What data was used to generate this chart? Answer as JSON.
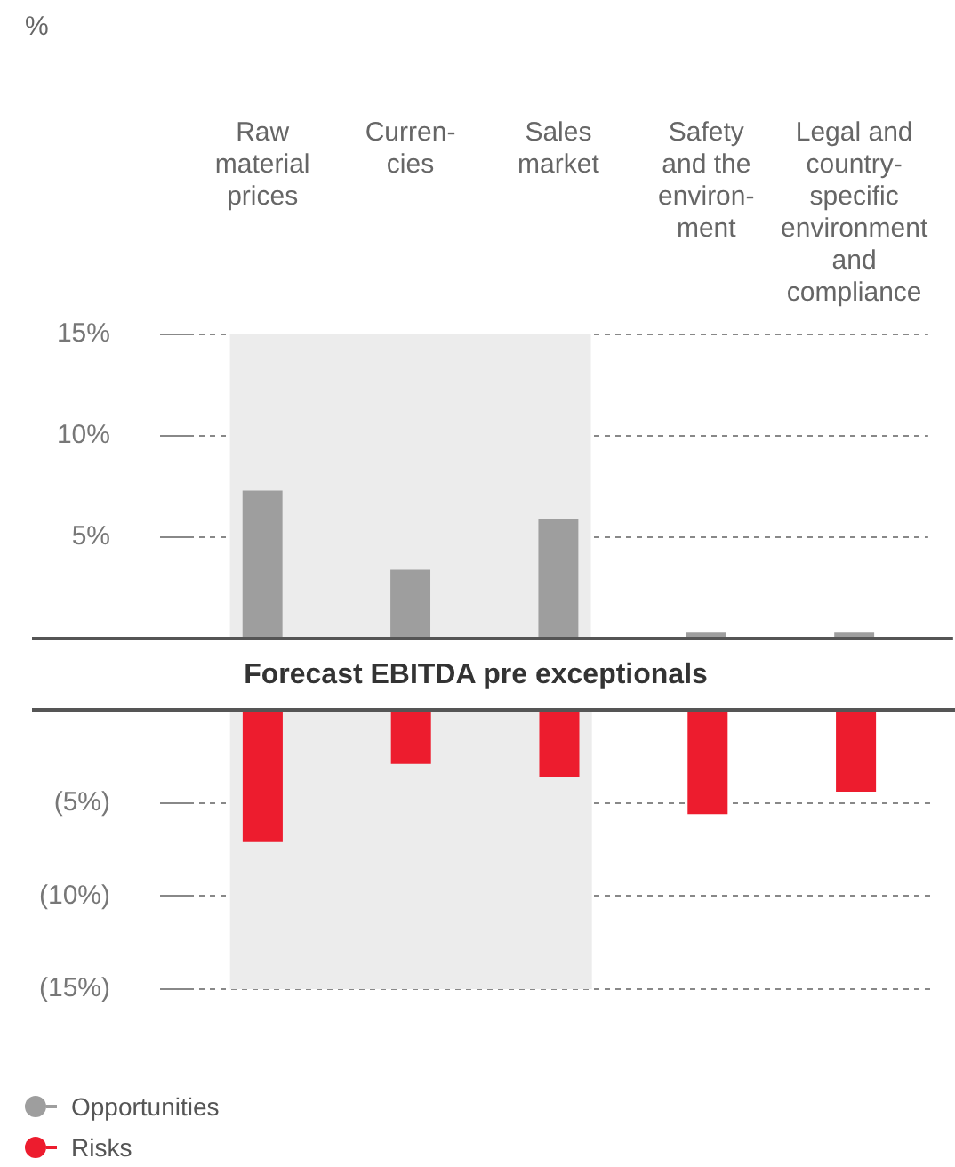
{
  "chart_data": [
    {
      "type": "bar",
      "annotations": [
        "%"
      ],
      "categories": [
        "Raw material prices",
        "Curren- cies",
        "Sales market",
        "Safety and the environ- ment",
        "Legal and country- specific environment and compliance"
      ],
      "series": [
        {
          "name": "Opportunities",
          "color": "#9e9e9e",
          "values": [
            7.3,
            3.4,
            5.9,
            0.3,
            0.3
          ]
        }
      ],
      "ylim": [
        0,
        15
      ],
      "yticks": [
        {
          "value": 5,
          "label": "5%"
        },
        {
          "value": 10,
          "label": "10%"
        },
        {
          "value": 15,
          "label": "15%"
        }
      ],
      "bands": [
        {
          "axis": "x",
          "from": "Raw material prices",
          "to": "Sales market",
          "color": "#ececec"
        }
      ],
      "grid": "y",
      "legend": "bottom left"
    },
    {
      "type": "bar",
      "title": "Forecast EBITDA pre exceptionals",
      "tick_labels": "y",
      "categories": [
        "Raw material prices",
        "Curren- cies",
        "Sales market",
        "Safety and the environ- ment",
        "Legal and country- specific environment and compliance"
      ],
      "series": [
        {
          "name": "Risks",
          "color": "#ed1c2e",
          "values": [
            -7.1,
            -2.9,
            -3.6,
            -5.6,
            -4.4
          ]
        }
      ],
      "ylim": [
        -15,
        0
      ],
      "yticks": [
        {
          "value": -15,
          "label": "(15%)"
        },
        {
          "value": -10,
          "label": "(10%)"
        },
        {
          "value": -5,
          "label": "(5%)"
        }
      ],
      "bands": [
        {
          "axis": "x",
          "from": "Raw material prices",
          "to": "Sales market",
          "color": "#ececec"
        }
      ],
      "grid": "y",
      "legend": "bottom left"
    }
  ]
}
